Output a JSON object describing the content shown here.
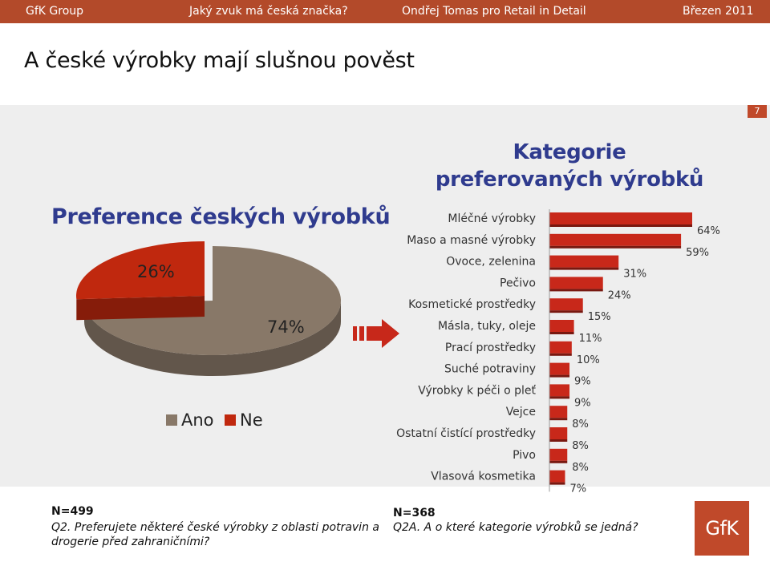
{
  "header": {
    "company": "GfK Group",
    "subject": "Jaký zvuk má česká značka?",
    "author": "Ondřej Tomas pro Retail in Detail",
    "date": "Březen 2011"
  },
  "slide": {
    "title": "A české výrobky mají slušnou pověst",
    "page_number": "7"
  },
  "left_heading": "Preference českých výrobků",
  "right_heading_line1": "Kategorie",
  "right_heading_line2": "preferovaných výrobků",
  "chart_data": [
    {
      "type": "pie",
      "categories": [
        "Ano",
        "Ne"
      ],
      "values": [
        74,
        26
      ],
      "data_labels": [
        "74%",
        "26%"
      ],
      "colors": [
        "#887868",
        "#c0280e"
      ],
      "legend_position": "bottom",
      "title": ""
    },
    {
      "type": "bar",
      "orientation": "horizontal",
      "categories": [
        "Mléčné výrobky",
        "Maso a masné výrobky",
        "Ovoce, zelenina",
        "Pečivo",
        "Kosmetické prostředky",
        "Másla, tuky, oleje",
        "Prací prostředky",
        "Suché potraviny",
        "Výrobky k péči o pleť",
        "Vejce",
        "Ostatní čistící prostředky",
        "Pivo",
        "Vlasová kosmetika"
      ],
      "values": [
        64,
        59,
        31,
        24,
        15,
        11,
        10,
        9,
        9,
        8,
        8,
        8,
        7
      ],
      "data_labels": [
        "64%",
        "59%",
        "31%",
        "24%",
        "15%",
        "11%",
        "10%",
        "9%",
        "9%",
        "8%",
        "8%",
        "8%",
        "7%"
      ],
      "color": "#c8281a",
      "xlim": [
        0,
        64
      ],
      "title": ""
    }
  ],
  "footer": {
    "left_n": "N=499",
    "left_q_line1": "Q2. Preferujete některé české výrobky z oblasti potravin a",
    "left_q_line2": "drogerie před zahraničními?",
    "right_n": "N=368",
    "right_q": "Q2A. A o které kategorie výrobků se jedná?"
  },
  "logo_text": "GfK"
}
